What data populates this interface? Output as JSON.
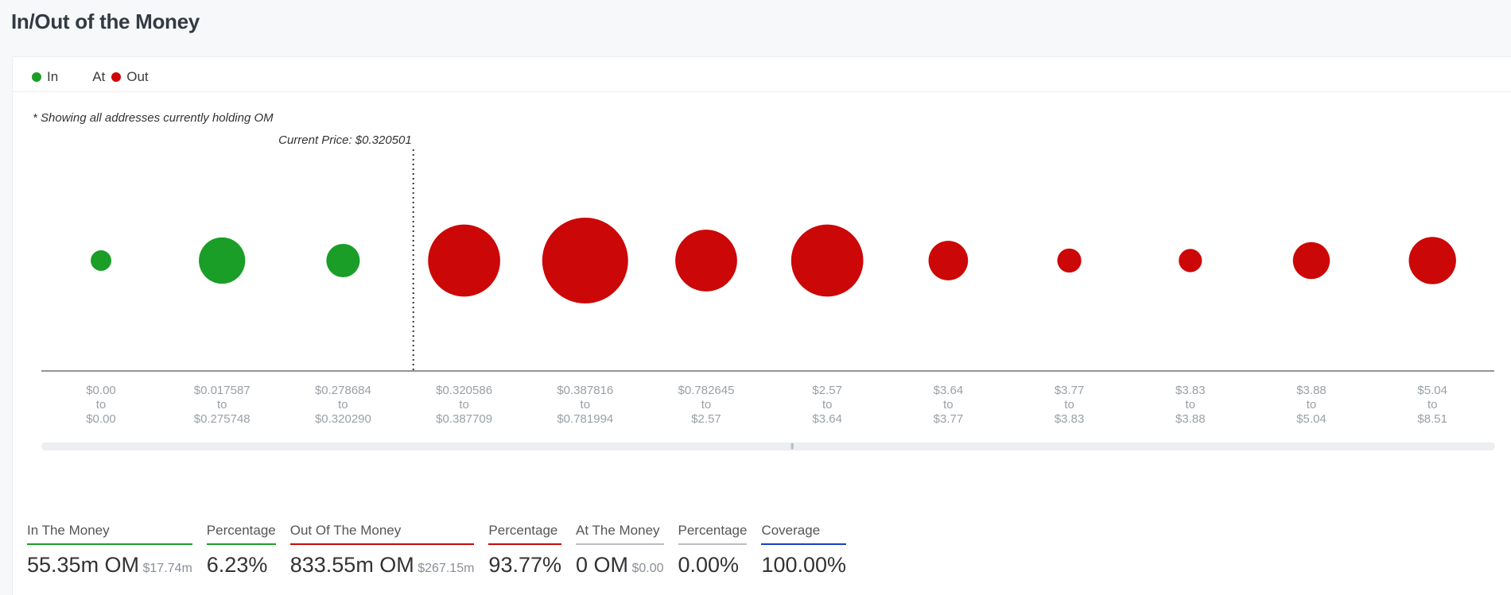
{
  "page": {
    "title": "In/Out of the Money"
  },
  "legend": {
    "in": "In",
    "at": "At",
    "out": "Out"
  },
  "footnote": "* Showing all addresses currently holding OM",
  "current_price_label": "Current Price: $0.320501",
  "colors": {
    "in": "#1a9e28",
    "out": "#cc0707",
    "at": "#9aa0a6",
    "coverage": "#1b3fc9"
  },
  "chart_data": {
    "type": "scatter",
    "current_price": 0.320501,
    "categories": [
      [
        "$0.00",
        "to",
        "$0.00"
      ],
      [
        "$0.017587",
        "to",
        "$0.275748"
      ],
      [
        "$0.278684",
        "to",
        "$0.320290"
      ],
      [
        "$0.320586",
        "to",
        "$0.387709"
      ],
      [
        "$0.387816",
        "to",
        "$0.781994"
      ],
      [
        "$0.782645",
        "to",
        "$2.57"
      ],
      [
        "$2.57",
        "to",
        "$3.64"
      ],
      [
        "$3.64",
        "to",
        "$3.77"
      ],
      [
        "$3.77",
        "to",
        "$3.83"
      ],
      [
        "$3.83",
        "to",
        "$3.88"
      ],
      [
        "$3.88",
        "to",
        "$5.04"
      ],
      [
        "$5.04",
        "to",
        "$8.51"
      ]
    ],
    "status": [
      "in",
      "in",
      "in",
      "out",
      "out",
      "out",
      "out",
      "out",
      "out",
      "out",
      "out",
      "out"
    ],
    "relative_size": [
      0.24,
      0.54,
      0.39,
      0.84,
      1.0,
      0.72,
      0.84,
      0.46,
      0.28,
      0.27,
      0.43,
      0.55
    ]
  },
  "summary": [
    {
      "label": "In The Money",
      "value": "55.35m OM",
      "sub": "$17.74m",
      "color": "#1a9e28"
    },
    {
      "label": "Percentage",
      "value": "6.23%",
      "sub": "",
      "color": "#1a9e28"
    },
    {
      "label": "Out Of The Money",
      "value": "833.55m OM",
      "sub": "$267.15m",
      "color": "#cc0707"
    },
    {
      "label": "Percentage",
      "value": "93.77%",
      "sub": "",
      "color": "#cc0707"
    },
    {
      "label": "At The Money",
      "value": "0 OM",
      "sub": "$0.00",
      "color": "#b9bcc0"
    },
    {
      "label": "Percentage",
      "value": "0.00%",
      "sub": "",
      "color": "#b9bcc0"
    },
    {
      "label": "Coverage",
      "value": "100.00%",
      "sub": "",
      "color": "#1b3fc9"
    }
  ]
}
